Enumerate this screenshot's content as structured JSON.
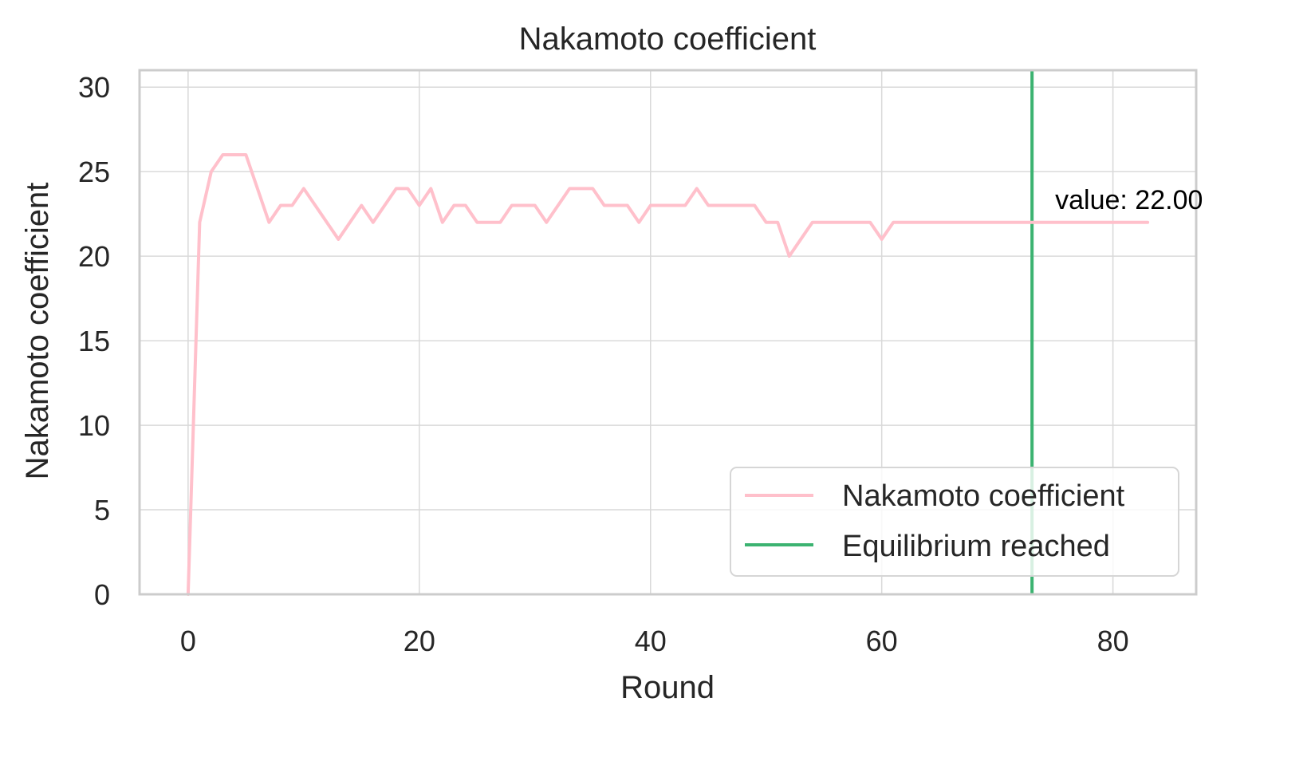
{
  "chart_data": {
    "type": "line",
    "title": "Nakamoto coefficient",
    "xlabel": "Round",
    "ylabel": "Nakamoto coefficient",
    "xlim": [
      -4.2,
      87.2
    ],
    "ylim": [
      0,
      31
    ],
    "xticks": [
      0,
      20,
      40,
      60,
      80
    ],
    "yticks": [
      0,
      5,
      10,
      15,
      20,
      25,
      30
    ],
    "grid": true,
    "legend_position": "lower right",
    "series": [
      {
        "name": "Nakamoto coefficient",
        "color": "#ffc0cb",
        "x": [
          0,
          1,
          2,
          3,
          4,
          5,
          6,
          7,
          8,
          9,
          10,
          11,
          12,
          13,
          14,
          15,
          16,
          17,
          18,
          19,
          20,
          21,
          22,
          23,
          24,
          25,
          26,
          27,
          28,
          29,
          30,
          31,
          32,
          33,
          34,
          35,
          36,
          37,
          38,
          39,
          40,
          41,
          42,
          43,
          44,
          45,
          46,
          47,
          48,
          49,
          50,
          51,
          52,
          53,
          54,
          55,
          56,
          57,
          58,
          59,
          60,
          61,
          62,
          63,
          64,
          65,
          66,
          67,
          68,
          69,
          70,
          71,
          72,
          73,
          74,
          75,
          76,
          77,
          78,
          79,
          80,
          81,
          82,
          83
        ],
        "values": [
          0,
          22,
          25,
          26,
          26,
          26,
          24,
          22,
          23,
          23,
          24,
          23,
          22,
          21,
          22,
          23,
          22,
          23,
          24,
          24,
          23,
          24,
          22,
          23,
          23,
          22,
          22,
          22,
          23,
          23,
          23,
          22,
          23,
          24,
          24,
          24,
          23,
          23,
          23,
          22,
          23,
          23,
          23,
          23,
          24,
          23,
          23,
          23,
          23,
          23,
          22,
          22,
          20,
          21,
          22,
          22,
          22,
          22,
          22,
          22,
          21,
          22,
          22,
          22,
          22,
          22,
          22,
          22,
          22,
          22,
          22,
          22,
          22,
          22,
          22,
          22,
          22,
          22,
          22,
          22,
          22,
          22,
          22,
          22
        ]
      }
    ],
    "vlines": [
      {
        "name": "Equilibrium reached",
        "x": 73,
        "color": "#3cb371"
      }
    ],
    "annotations": [
      {
        "text": "value: 22.00",
        "x": 75,
        "y": 22.8
      }
    ]
  }
}
